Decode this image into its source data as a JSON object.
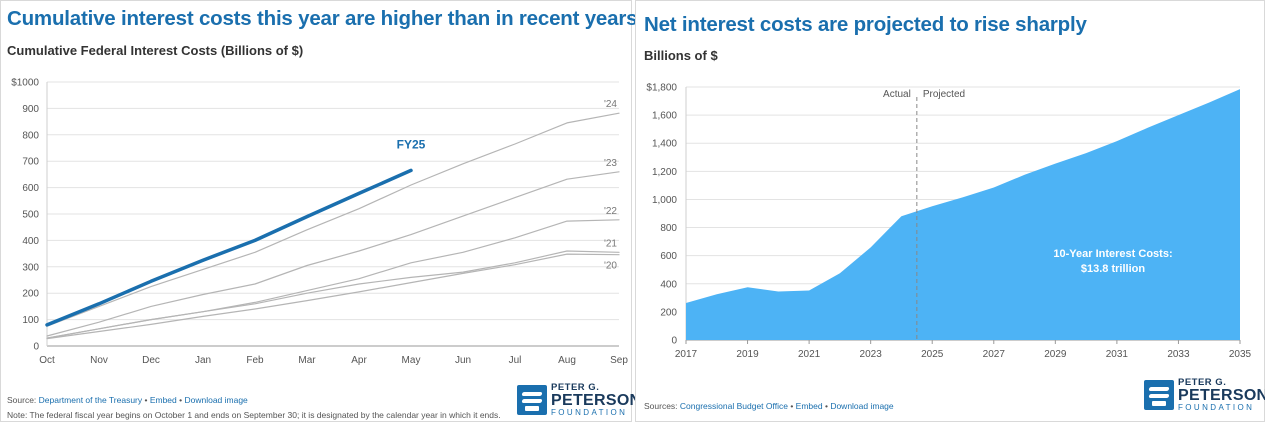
{
  "left": {
    "title": "Cumulative interest costs this year are higher than in recent years",
    "subtitle": "Cumulative Federal Interest Costs (Billions of $)",
    "source_prefix": "Source: ",
    "source_name": "Department of the Treasury",
    "sep": " • ",
    "embed": "Embed",
    "download": "Download image",
    "note": "Note: The federal fiscal year begins on October 1 and ends on September 30; it is designated by the calendar year in which it ends."
  },
  "right": {
    "title": "Net interest costs are projected to rise sharply",
    "subtitle": "Billions of $",
    "source_prefix": "Sources: ",
    "source_name": "Congressional Budget Office",
    "sep": " • ",
    "embed": "Embed",
    "download": "Download image"
  },
  "logo": {
    "line1": "PETER G.",
    "line2": "PETERSON",
    "line3": "FOUNDATION"
  },
  "colors": {
    "accent": "#1a6fae",
    "area": "#4db3f5",
    "grey_line": "#b5b5b5",
    "grid": "#e3e3e3"
  },
  "chart_data": [
    {
      "type": "line",
      "categories": [
        "Oct",
        "Nov",
        "Dec",
        "Jan",
        "Feb",
        "Mar",
        "Apr",
        "May",
        "Jun",
        "Jul",
        "Aug",
        "Sep"
      ],
      "ylim": [
        0,
        1000
      ],
      "yticks": [
        0,
        100,
        200,
        300,
        400,
        500,
        600,
        700,
        800,
        900,
        1000
      ],
      "ytick_labels": [
        "0",
        "100",
        "200",
        "300",
        "400",
        "500",
        "600",
        "700",
        "800",
        "900",
        "$1000"
      ],
      "grid": true,
      "series": [
        {
          "name": "FY25",
          "highlight": true,
          "values": [
            80,
            160,
            245,
            325,
            400,
            490,
            578,
            665,
            null,
            null,
            null,
            null
          ]
        },
        {
          "name": "'24",
          "values": [
            75,
            150,
            225,
            290,
            355,
            440,
            520,
            610,
            690,
            765,
            845,
            882
          ]
        },
        {
          "name": "'23",
          "values": [
            38,
            90,
            150,
            195,
            235,
            305,
            360,
            422,
            492,
            562,
            632,
            660
          ]
        },
        {
          "name": "'22",
          "values": [
            30,
            65,
            100,
            130,
            165,
            210,
            255,
            315,
            355,
            410,
            473,
            478
          ]
        },
        {
          "name": "'21",
          "values": [
            30,
            65,
            100,
            130,
            160,
            200,
            235,
            260,
            280,
            315,
            360,
            355
          ]
        },
        {
          "name": "'20",
          "values": [
            28,
            55,
            82,
            112,
            140,
            172,
            205,
            240,
            275,
            308,
            348,
            346
          ]
        }
      ]
    },
    {
      "type": "area",
      "x": [
        2017,
        2018,
        2019,
        2020,
        2021,
        2022,
        2023,
        2024,
        2025,
        2026,
        2027,
        2028,
        2029,
        2030,
        2031,
        2032,
        2033,
        2034,
        2035
      ],
      "xtick_labels": [
        "2017",
        "2019",
        "2021",
        "2023",
        "2025",
        "2027",
        "2029",
        "2031",
        "2033",
        "2035"
      ],
      "values": [
        263,
        325,
        375,
        345,
        352,
        475,
        659,
        881,
        952,
        1015,
        1085,
        1175,
        1255,
        1330,
        1415,
        1510,
        1600,
        1690,
        1785
      ],
      "ylim": [
        0,
        1800
      ],
      "yticks": [
        0,
        200,
        400,
        600,
        800,
        1000,
        1200,
        1400,
        1600,
        1800
      ],
      "ytick_labels": [
        "0",
        "200",
        "400",
        "600",
        "800",
        "1,000",
        "1,200",
        "1,400",
        "1,600",
        "$1,800"
      ],
      "divider_year": 2024.5,
      "divider_left_label": "Actual",
      "divider_right_label": "Projected",
      "annotation_line1": "10-Year Interest Costs:",
      "annotation_line2": "$13.8 trillion",
      "grid": true
    }
  ]
}
